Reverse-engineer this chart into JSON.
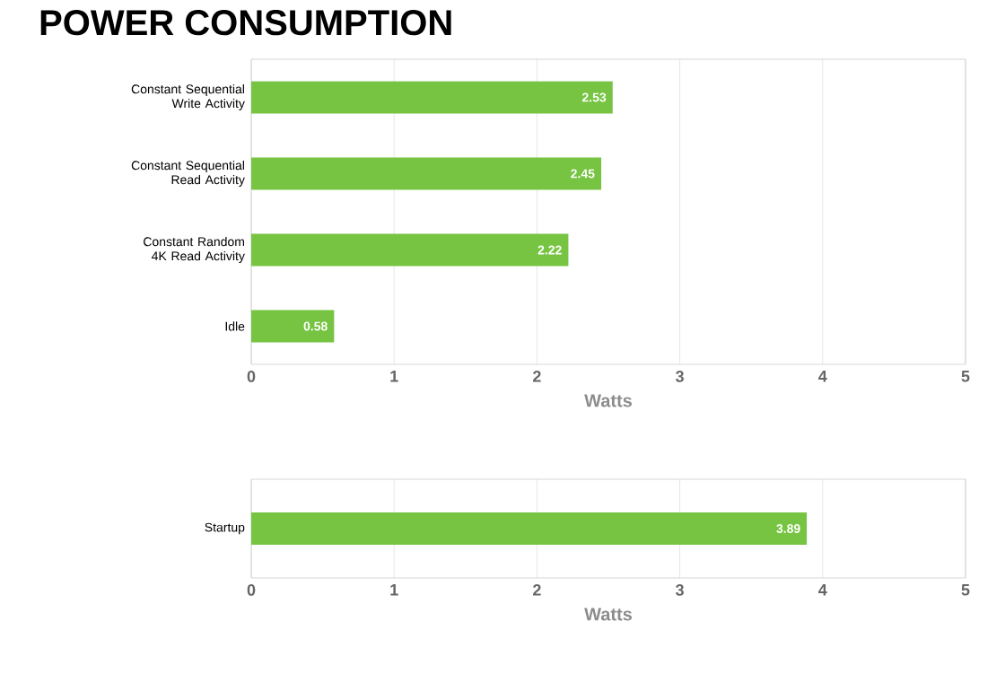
{
  "chart_data": [
    {
      "type": "bar",
      "orientation": "horizontal",
      "title": "POWER CONSUMPTION",
      "categories": [
        "Constant Sequential Write Activity",
        "Constant Sequential Read Activity",
        "Constant Random 4K Read Activity",
        "Idle"
      ],
      "values": [
        2.53,
        2.45,
        2.22,
        0.58
      ],
      "color": "#76c442",
      "xlabel": "Watts",
      "xlim": [
        0,
        5
      ],
      "xticks": [
        0,
        1,
        2,
        3,
        4,
        5
      ],
      "grid": "x",
      "data_labels": true
    },
    {
      "type": "bar",
      "orientation": "horizontal",
      "categories": [
        "Startup"
      ],
      "values": [
        3.89
      ],
      "color": "#76c442",
      "xlabel": "Watts",
      "xlim": [
        0,
        5
      ],
      "xticks": [
        0,
        1,
        2,
        3,
        4,
        5
      ],
      "grid": "x",
      "data_labels": true
    }
  ]
}
